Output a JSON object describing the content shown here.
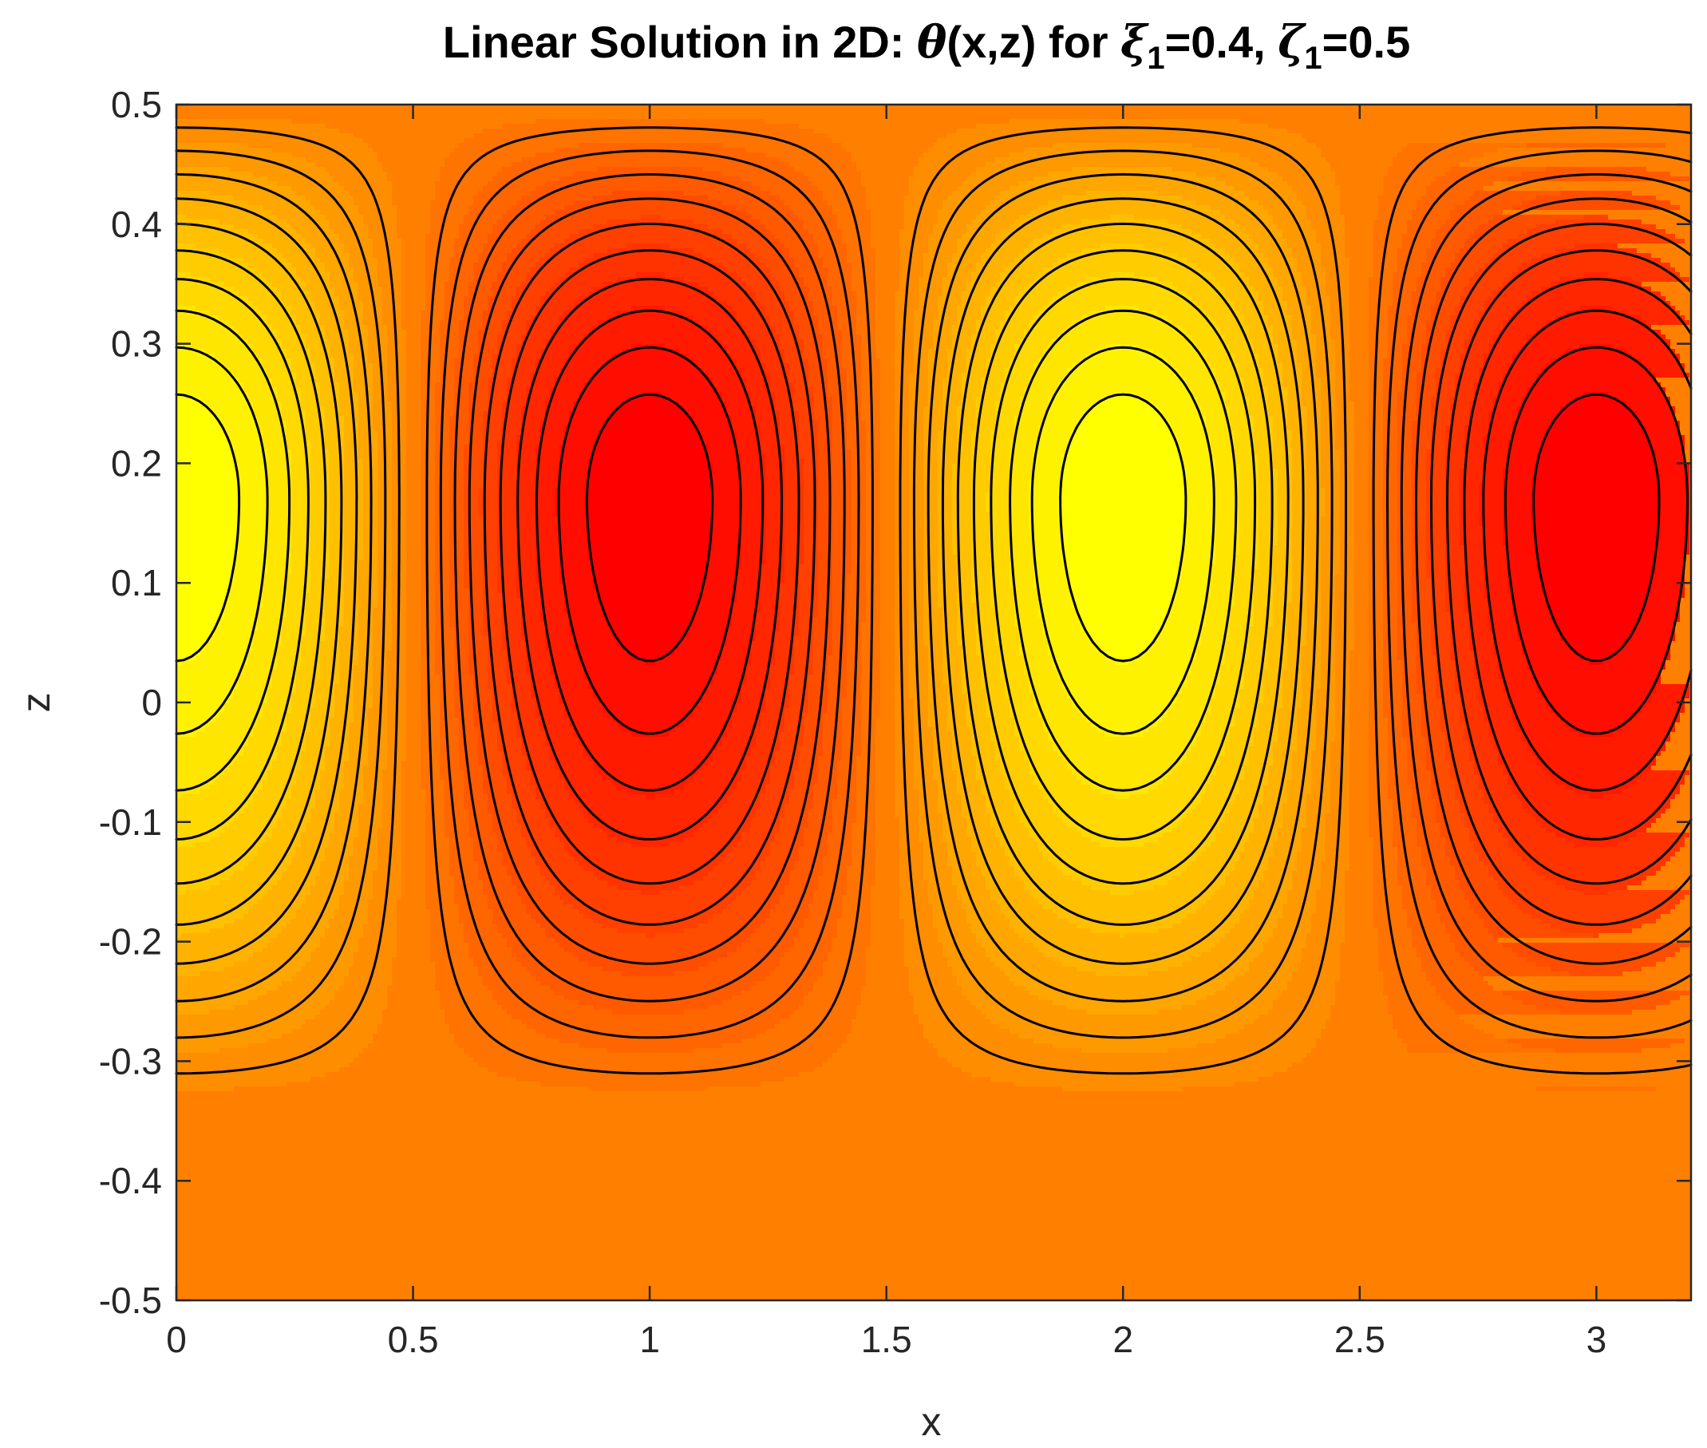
{
  "chart_data": {
    "type": "contour",
    "title": {
      "prefix": "Linear Solution in 2D:  ",
      "symbol": "θ",
      "args": "(x,z) for ",
      "param1_symbol": "ξ",
      "param1_sub": "1",
      "param1_value": "=0.4, ",
      "param2_symbol": "ζ",
      "param2_sub": "1",
      "param2_value": "=0.5"
    },
    "xlabel": "x",
    "ylabel": "z",
    "xlim": [
      0,
      3.2
    ],
    "ylim": [
      -0.5,
      0.5
    ],
    "xticks": [
      0,
      0.5,
      1,
      1.5,
      2,
      2.5,
      3
    ],
    "xtick_labels": [
      "0",
      "0.5",
      "1",
      "1.5",
      "2",
      "2.5",
      "3"
    ],
    "yticks": [
      0.5,
      0.4,
      0.3,
      0.2,
      0.1,
      0,
      -0.1,
      -0.2,
      -0.3,
      -0.4,
      -0.5
    ],
    "ytick_labels": [
      "0.5",
      "0.4",
      "0.3",
      "0.2",
      "0.1",
      "0",
      "-0.1",
      "-0.2",
      "-0.3",
      "-0.4",
      "-0.5"
    ],
    "field": {
      "form": "theta(x,z) = cos(pi*x) * f(z)",
      "x_wavelength": 2,
      "f_peak_z": 0.17,
      "f_zero_below_z": -0.34,
      "f_top_z": 0.5
    },
    "centers": [
      {
        "x": 0,
        "z": 0.17,
        "kind": "min"
      },
      {
        "x": 1,
        "z": 0.17,
        "kind": "max"
      },
      {
        "x": 2,
        "z": 0.17,
        "kind": "min"
      },
      {
        "x": 3,
        "z": 0.17,
        "kind": "max"
      }
    ],
    "contour_levels_per_sign": 10,
    "colormap": "autumn",
    "colors": {
      "min": "#ff0000",
      "mid": "#ff8000",
      "max": "#ffff00",
      "contour_line": "#000000",
      "axis": "#262626"
    },
    "grid": false,
    "box": true
  }
}
